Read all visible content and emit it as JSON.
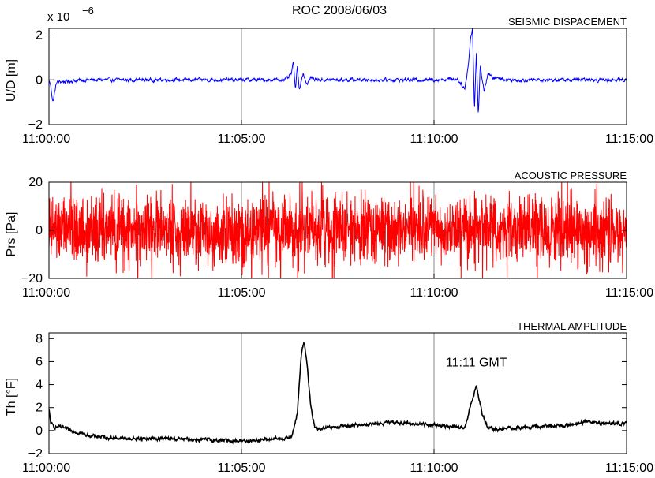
{
  "figure": {
    "title": "ROC 2008/06/03",
    "exponent_label": "x 10",
    "exponent_power": "−6"
  },
  "chart_data": [
    {
      "type": "line",
      "title": "SEISMIC DISPACEMENT",
      "ylabel": "U/D [m]",
      "xlabel": "",
      "x_ticks": [
        "11:00:00",
        "11:05:00",
        "11:10:00",
        "11:15:00"
      ],
      "x_range_minutes": [
        0,
        15
      ],
      "ylim": [
        -2,
        2.3
      ],
      "y_ticks": [
        -2,
        0,
        2
      ],
      "y_tick_labels": [
        "−2",
        "0",
        "2"
      ],
      "y_scale_factor": "1e-6",
      "grid": "vertical at 11:05:00 and 11:10:00",
      "color": "#0000ff",
      "series": [
        {
          "x": [
            0,
            0.05,
            0.1,
            0.2,
            1,
            2,
            3,
            4,
            5,
            6,
            6.2,
            6.3,
            6.35,
            6.4,
            6.45,
            6.5,
            6.6,
            6.7,
            6.8,
            7,
            8,
            9,
            10,
            10.6,
            10.8,
            10.9,
            10.95,
            11.0,
            11.05,
            11.1,
            11.15,
            11.2,
            11.3,
            11.4,
            11.5,
            12,
            13,
            14,
            15
          ],
          "values": [
            0,
            -0.3,
            -1.0,
            -0.1,
            0,
            0,
            0,
            0,
            0,
            0,
            0.05,
            0.3,
            0.8,
            -0.5,
            0.6,
            -0.4,
            0.3,
            -0.2,
            0.1,
            0,
            0,
            0,
            0,
            0.05,
            -0.4,
            0.8,
            1.9,
            2.3,
            -1.3,
            1.2,
            -1.6,
            0.6,
            -0.5,
            0.3,
            0.1,
            0,
            0,
            0,
            0
          ],
          "noise_amplitude": 0.12
        }
      ]
    },
    {
      "type": "line",
      "title": "ACOUSTIC PRESSURE",
      "ylabel": "Prs [Pa]",
      "xlabel": "",
      "x_ticks": [
        "11:00:00",
        "11:05:00",
        "11:10:00",
        "11:15:00"
      ],
      "x_range_minutes": [
        0,
        15
      ],
      "ylim": [
        -20,
        20
      ],
      "y_ticks": [
        -20,
        0,
        20
      ],
      "y_tick_labels": [
        "−20",
        "0",
        "20"
      ],
      "grid": "vertical at 11:05:00 and 11:10:00",
      "color": "#ff0000",
      "series": [
        {
          "x": [
            0,
            15
          ],
          "values": [
            0,
            0
          ],
          "noise_amplitude": 17
        }
      ]
    },
    {
      "type": "line",
      "title": "THERMAL AMPLITUDE",
      "ylabel": "Th [°F]",
      "xlabel": "",
      "x_ticks": [
        "11:00:00",
        "11:05:00",
        "11:10:00",
        "11:15:00"
      ],
      "x_range_minutes": [
        0,
        15
      ],
      "ylim": [
        -2,
        8.5
      ],
      "y_ticks": [
        -2,
        0,
        2,
        4,
        6,
        8
      ],
      "y_tick_labels": [
        "−2",
        "0",
        "2",
        "4",
        "6",
        "8"
      ],
      "grid": "vertical at 11:05:00 and 11:10:00",
      "color": "#000000",
      "annotation": "11:11 GMT",
      "series": [
        {
          "x": [
            0,
            0.05,
            0.15,
            0.3,
            0.6,
            1,
            1.5,
            2,
            3,
            4,
            5,
            5.5,
            6,
            6.3,
            6.45,
            6.55,
            6.62,
            6.7,
            6.8,
            6.9,
            7.0,
            7.2,
            7.5,
            8,
            8.5,
            9,
            9.5,
            10,
            10.5,
            10.8,
            10.95,
            11.1,
            11.25,
            11.4,
            11.6,
            12,
            12.5,
            13,
            13.5,
            14,
            14.5,
            15
          ],
          "values": [
            1.8,
            0.6,
            0.3,
            0.3,
            0,
            -0.4,
            -0.6,
            -0.7,
            -0.7,
            -0.8,
            -0.9,
            -0.8,
            -0.7,
            -0.6,
            1.5,
            6.5,
            7.8,
            6.0,
            2.0,
            0.3,
            0.1,
            0.2,
            0.3,
            0.5,
            0.6,
            0.7,
            0.6,
            0.5,
            0.3,
            0.2,
            2.2,
            3.9,
            1.5,
            0.2,
            0.1,
            0.2,
            0.3,
            0.4,
            0.5,
            0.8,
            0.6,
            0.6
          ],
          "noise_amplitude": 0.22
        }
      ]
    }
  ]
}
